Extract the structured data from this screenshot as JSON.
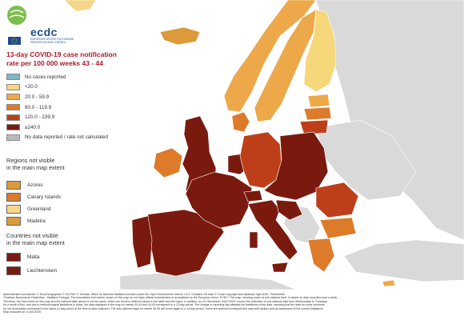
{
  "title_line1": "13-day COVID-19 case notification",
  "title_line2": "rate per 100 000 weeks 43 - 44",
  "logo": {
    "text": "ecdc",
    "subtitle": "EUROPEAN CENTRE FOR DISEASE PREVENTION AND CONTROL"
  },
  "legend": [
    {
      "label": "No cases reported",
      "color": "#7fb6c9"
    },
    {
      "label": "<20.0",
      "color": "#f6d77a"
    },
    {
      "label": "20.0 - 59.9",
      "color": "#eda84a"
    },
    {
      "label": "60.0 - 119.9",
      "color": "#dd7b2b"
    },
    {
      "label": "120.0 - 239.9",
      "color": "#bd3f1a"
    },
    {
      "label": "≥240.0",
      "color": "#7a1a0f"
    },
    {
      "label": "No data reported / rate not calculated",
      "color": "hatch"
    }
  ],
  "regions_heading_1": "Regions not visible",
  "regions_heading_2": "in the main map extent",
  "regions": [
    {
      "label": "Azores",
      "color": "#dd9a3a"
    },
    {
      "label": "Canary Islands",
      "color": "#dd7b2b"
    },
    {
      "label": "Greenland",
      "color": "#f4d78a"
    },
    {
      "label": "Madeira",
      "color": "#dd9a3a"
    }
  ],
  "countries_heading_1": "Countries not visible",
  "countries_heading_2": "in the main map extent",
  "countries": [
    {
      "label": "Malta",
      "color": "#7a1a0f"
    },
    {
      "label": "Liechtenstein",
      "color": "#7a1a0f"
    }
  ],
  "footer": [
    "Administrative boundaries: © EuroGeographics © UN-FAO © Turkstat. Office for National Statistics licensed under the Open Government Licence v.3.0. Contains OS data © Crown copyright and database right 2020. ©Kartverket",
    "©Instituto Nacional de Estatística - Statistics Portugal. The boundaries and names shown on this map do not imply official endorsement or acceptance by the European Union. ECDC: This map, showing cases at sub-national level, is based on data recorded once a week.",
    "Therefore, the time frame for this map and the national table above is not the same, which can result in different values in the table and the maps. In addition, as of 3 November 2020 ECDC moved the collection of sub-national data from Wednesdays to Tuesdays.",
    "As a result of this, and due to methodological limitations in place, the data displayed in the map for weeks 43-44 and 44-45 correspond to a 13-day period. The change in reporting day affected the timeliness of the data, meaning that the data for some countries",
    "do not necessarily correspond to the latest 14-day period at the time of data collection. The sub-national maps for weeks 45-46 will revert again to a 14-day period. Users are advised to interpret this map with caution and an awareness of the current limitations.",
    "Map produced on: 5 Nov 2020"
  ]
}
